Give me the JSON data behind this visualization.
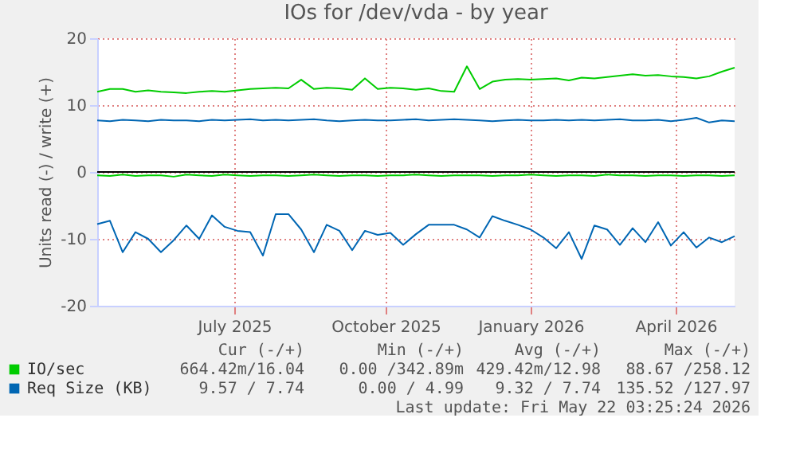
{
  "chart_data": {
    "type": "line",
    "title": "IOs for /dev/vda - by year",
    "ylabel": "Units read (-) / write (+)",
    "x": [
      "2025-04-17",
      "2025-04-25",
      "2025-05-03",
      "2025-05-11",
      "2025-05-19",
      "2025-05-27",
      "2025-06-04",
      "2025-06-12",
      "2025-06-20",
      "2025-06-28",
      "2025-07-06",
      "2025-07-14",
      "2025-07-22",
      "2025-07-30",
      "2025-08-07",
      "2025-08-15",
      "2025-08-23",
      "2025-08-31",
      "2025-09-08",
      "2025-09-16",
      "2025-09-24",
      "2025-10-02",
      "2025-10-10",
      "2025-10-18",
      "2025-10-26",
      "2025-11-03",
      "2025-11-11",
      "2025-11-19",
      "2025-11-27",
      "2025-12-05",
      "2025-12-13",
      "2025-12-21",
      "2025-12-29",
      "2026-01-06",
      "2026-01-14",
      "2026-01-22",
      "2026-01-30",
      "2026-02-07",
      "2026-02-15",
      "2026-02-23",
      "2026-03-03",
      "2026-03-11",
      "2026-03-19",
      "2026-03-27",
      "2026-04-04",
      "2026-04-12",
      "2026-04-20",
      "2026-04-28",
      "2026-05-06",
      "2026-05-14",
      "2026-05-22"
    ],
    "series": [
      {
        "name": "IO/sec",
        "color": "#00cc00",
        "values": [
          12.0,
          12.4,
          12.4,
          12.0,
          12.2,
          12.0,
          11.9,
          11.8,
          12.0,
          12.1,
          12.0,
          12.2,
          12.4,
          12.5,
          12.6,
          12.5,
          13.8,
          12.4,
          12.6,
          12.5,
          12.3,
          14.0,
          12.4,
          12.6,
          12.5,
          12.3,
          12.5,
          12.1,
          12.0,
          15.8,
          12.4,
          13.5,
          13.8,
          13.9,
          13.8,
          13.9,
          14.0,
          13.7,
          14.1,
          14.0,
          14.2,
          14.4,
          14.6,
          14.4,
          14.5,
          14.3,
          14.2,
          14.0,
          14.3,
          15.0,
          15.6
        ]
      },
      {
        "color": "#00cc00",
        "values": [
          -0.5,
          -0.6,
          -0.4,
          -0.6,
          -0.5,
          -0.5,
          -0.7,
          -0.4,
          -0.5,
          -0.6,
          -0.4,
          -0.5,
          -0.6,
          -0.5,
          -0.5,
          -0.6,
          -0.5,
          -0.4,
          -0.5,
          -0.6,
          -0.5,
          -0.5,
          -0.6,
          -0.5,
          -0.5,
          -0.4,
          -0.5,
          -0.6,
          -0.5,
          -0.5,
          -0.5,
          -0.6,
          -0.5,
          -0.5,
          -0.4,
          -0.5,
          -0.6,
          -0.5,
          -0.5,
          -0.6,
          -0.4,
          -0.5,
          -0.5,
          -0.6,
          -0.5,
          -0.5,
          -0.6,
          -0.5,
          -0.5,
          -0.6,
          -0.5
        ]
      },
      {
        "name": "Req Size (KB)",
        "color": "#0066b3",
        "values": [
          7.7,
          7.6,
          7.8,
          7.7,
          7.6,
          7.8,
          7.7,
          7.7,
          7.6,
          7.8,
          7.7,
          7.8,
          7.9,
          7.7,
          7.8,
          7.7,
          7.8,
          7.9,
          7.7,
          7.6,
          7.7,
          7.8,
          7.7,
          7.7,
          7.8,
          7.9,
          7.7,
          7.8,
          7.9,
          7.8,
          7.7,
          7.6,
          7.7,
          7.8,
          7.7,
          7.7,
          7.8,
          7.7,
          7.8,
          7.7,
          7.8,
          7.9,
          7.7,
          7.7,
          7.8,
          7.6,
          7.8,
          8.1,
          7.4,
          7.7,
          7.6
        ]
      },
      {
        "color": "#0066b3",
        "values": [
          -7.8,
          -7.3,
          -12,
          -9,
          -10,
          -12,
          -10.2,
          -8,
          -10,
          -6.5,
          -8.2,
          -8.8,
          -9,
          -12.5,
          -6.3,
          -6.3,
          -8.6,
          -12,
          -7.9,
          -8.8,
          -11.7,
          -8.8,
          -9.4,
          -9.1,
          -10.9,
          -9.3,
          -7.9,
          -7.9,
          -7.9,
          -8.6,
          -9.8,
          -6.6,
          -7.3,
          -7.9,
          -8.6,
          -9.8,
          -11.4,
          -9,
          -13,
          -8,
          -8.6,
          -10.9,
          -8.4,
          -10.5,
          -7.5,
          -11,
          -9,
          -11.3,
          -9.8,
          -10.5,
          -9.6
        ]
      }
    ],
    "xlim": [
      "2025-04-17",
      "2026-05-22"
    ],
    "xticks": [
      {
        "value": "2025-07-12",
        "label": "July 2025"
      },
      {
        "value": "2025-10-15",
        "label": "October 2025"
      },
      {
        "value": "2026-01-14",
        "label": "January 2026"
      },
      {
        "value": "2026-04-15",
        "label": "April 2026"
      }
    ],
    "ylim": [
      -20,
      20
    ],
    "yticks": [
      -20,
      -10,
      0,
      10,
      20
    ],
    "ref_lines": [
      {
        "axis": "y",
        "value": 0,
        "color": "#000000"
      }
    ],
    "grid": true,
    "legend": "bottom",
    "annotations": [
      "Cur (-/+)",
      "Min (-/+)",
      "Avg (-/+)",
      "Max (-/+)",
      "664.42m/16.04",
      "0.00 /342.89m",
      "429.42m/12.98",
      "88.67 /258.12",
      "9.57 / 7.74",
      "0.00 / 4.99",
      "9.32 / 7.74",
      "135.52 /127.97",
      "Last update: Fri May 22 03:25:24 2026"
    ]
  }
}
